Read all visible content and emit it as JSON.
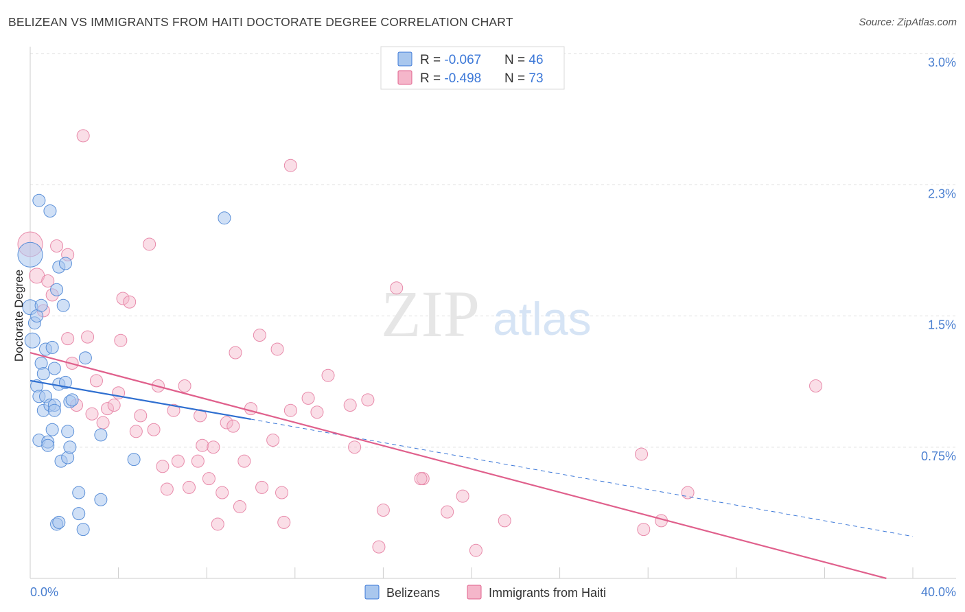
{
  "title": "BELIZEAN VS IMMIGRANTS FROM HAITI DOCTORATE DEGREE CORRELATION CHART",
  "source": "Source: ZipAtlas.com",
  "watermark": {
    "zip": "ZIP",
    "atlas": "atlas"
  },
  "colors": {
    "blue": "#3c78d8",
    "blue_fill": "#a9c7ee",
    "pink": "#e0608c",
    "pink_fill": "#f5b6ca",
    "axis_text": "#4a7fd0"
  },
  "legend": {
    "rows": [
      {
        "r_label": "R = ",
        "r_value": "-0.067",
        "n_label": "N = ",
        "n_value": "46"
      },
      {
        "r_label": "R = ",
        "r_value": "-0.498",
        "n_label": "N = ",
        "n_value": "73"
      }
    ]
  },
  "bottom_legend": {
    "blue": "Belizeans",
    "pink": "Immigrants from Haiti"
  },
  "chart_data": {
    "type": "scatter",
    "title": "BELIZEAN VS IMMIGRANTS FROM HAITI DOCTORATE DEGREE CORRELATION CHART",
    "xlabel": "",
    "ylabel": "Doctorate Degree",
    "xlim": [
      0,
      40
    ],
    "ylim": [
      0,
      3.0
    ],
    "x_tick_labels": [
      "0.0%",
      "40.0%"
    ],
    "y_ticks": [
      0.75,
      1.5,
      2.25,
      3.0
    ],
    "y_tick_labels": [
      "0.75%",
      "1.5%",
      "2.3%",
      "3.0%"
    ],
    "grid": "horizontal dashed",
    "legend_position": "top-center",
    "series": [
      {
        "name": "Belizeans",
        "r": -0.067,
        "n": 46,
        "trend": {
          "x": [
            0,
            10
          ],
          "y": [
            1.13,
            0.91
          ]
        },
        "trend_dashed": {
          "x": [
            10,
            40
          ],
          "y": [
            0.91,
            0.24
          ]
        },
        "points": [
          {
            "x": 0.0,
            "y": 1.85,
            "s": 18
          },
          {
            "x": 0.0,
            "y": 1.55,
            "s": 11
          },
          {
            "x": 0.1,
            "y": 1.36,
            "s": 11
          },
          {
            "x": 0.2,
            "y": 1.46,
            "s": 9
          },
          {
            "x": 0.3,
            "y": 1.5,
            "s": 9
          },
          {
            "x": 0.3,
            "y": 1.1,
            "s": 9
          },
          {
            "x": 0.4,
            "y": 2.16,
            "s": 9
          },
          {
            "x": 0.4,
            "y": 1.04,
            "s": 9
          },
          {
            "x": 0.4,
            "y": 0.79,
            "s": 9
          },
          {
            "x": 0.5,
            "y": 1.56,
            "s": 9
          },
          {
            "x": 0.5,
            "y": 1.23,
            "s": 9
          },
          {
            "x": 0.6,
            "y": 0.96,
            "s": 9
          },
          {
            "x": 0.6,
            "y": 1.17,
            "s": 9
          },
          {
            "x": 0.7,
            "y": 1.31,
            "s": 9
          },
          {
            "x": 0.7,
            "y": 1.04,
            "s": 9
          },
          {
            "x": 0.8,
            "y": 0.78,
            "s": 9
          },
          {
            "x": 0.8,
            "y": 0.76,
            "s": 9
          },
          {
            "x": 0.9,
            "y": 2.1,
            "s": 9
          },
          {
            "x": 0.9,
            "y": 0.99,
            "s": 9
          },
          {
            "x": 1.0,
            "y": 0.85,
            "s": 9
          },
          {
            "x": 1.0,
            "y": 1.32,
            "s": 9
          },
          {
            "x": 1.1,
            "y": 0.99,
            "s": 9
          },
          {
            "x": 1.1,
            "y": 1.2,
            "s": 9
          },
          {
            "x": 1.1,
            "y": 0.96,
            "s": 9
          },
          {
            "x": 1.2,
            "y": 0.31,
            "s": 9
          },
          {
            "x": 1.2,
            "y": 1.65,
            "s": 9
          },
          {
            "x": 1.3,
            "y": 0.32,
            "s": 9
          },
          {
            "x": 1.3,
            "y": 1.78,
            "s": 9
          },
          {
            "x": 1.3,
            "y": 1.11,
            "s": 9
          },
          {
            "x": 1.4,
            "y": 0.67,
            "s": 9
          },
          {
            "x": 1.5,
            "y": 1.56,
            "s": 9
          },
          {
            "x": 1.6,
            "y": 1.8,
            "s": 9
          },
          {
            "x": 1.6,
            "y": 1.12,
            "s": 9
          },
          {
            "x": 1.7,
            "y": 0.69,
            "s": 9
          },
          {
            "x": 1.7,
            "y": 0.84,
            "s": 9
          },
          {
            "x": 1.8,
            "y": 0.75,
            "s": 9
          },
          {
            "x": 1.8,
            "y": 1.01,
            "s": 9
          },
          {
            "x": 1.9,
            "y": 1.02,
            "s": 9
          },
          {
            "x": 2.2,
            "y": 0.49,
            "s": 9
          },
          {
            "x": 2.2,
            "y": 0.37,
            "s": 9
          },
          {
            "x": 2.4,
            "y": 0.28,
            "s": 9
          },
          {
            "x": 2.5,
            "y": 1.26,
            "s": 9
          },
          {
            "x": 3.2,
            "y": 0.45,
            "s": 9
          },
          {
            "x": 3.2,
            "y": 0.82,
            "s": 9
          },
          {
            "x": 4.7,
            "y": 0.68,
            "s": 9
          },
          {
            "x": 8.8,
            "y": 2.06,
            "s": 9
          }
        ]
      },
      {
        "name": "Immigrants from Haiti",
        "r": -0.498,
        "n": 73,
        "trend": {
          "x": [
            0,
            38.8
          ],
          "y": [
            1.29,
            0.0
          ]
        },
        "points": [
          {
            "x": 0.0,
            "y": 1.91,
            "s": 18
          },
          {
            "x": 0.3,
            "y": 1.73,
            "s": 11
          },
          {
            "x": 0.6,
            "y": 1.53,
            "s": 9
          },
          {
            "x": 0.8,
            "y": 1.7,
            "s": 9
          },
          {
            "x": 1.0,
            "y": 1.62,
            "s": 9
          },
          {
            "x": 1.2,
            "y": 1.9,
            "s": 9
          },
          {
            "x": 1.7,
            "y": 1.85,
            "s": 9
          },
          {
            "x": 1.7,
            "y": 1.37,
            "s": 9
          },
          {
            "x": 1.9,
            "y": 1.23,
            "s": 9
          },
          {
            "x": 2.1,
            "y": 0.99,
            "s": 9
          },
          {
            "x": 2.4,
            "y": 2.53,
            "s": 9
          },
          {
            "x": 2.6,
            "y": 1.38,
            "s": 9
          },
          {
            "x": 2.8,
            "y": 0.94,
            "s": 9
          },
          {
            "x": 3.0,
            "y": 1.13,
            "s": 9
          },
          {
            "x": 3.3,
            "y": 0.89,
            "s": 9
          },
          {
            "x": 3.5,
            "y": 0.97,
            "s": 9
          },
          {
            "x": 3.8,
            "y": 0.99,
            "s": 9
          },
          {
            "x": 4.0,
            "y": 1.06,
            "s": 9
          },
          {
            "x": 4.1,
            "y": 1.36,
            "s": 9
          },
          {
            "x": 4.2,
            "y": 1.6,
            "s": 9
          },
          {
            "x": 4.5,
            "y": 1.58,
            "s": 9
          },
          {
            "x": 4.8,
            "y": 0.84,
            "s": 9
          },
          {
            "x": 5.0,
            "y": 0.93,
            "s": 9
          },
          {
            "x": 5.4,
            "y": 1.91,
            "s": 9
          },
          {
            "x": 5.6,
            "y": 0.85,
            "s": 9
          },
          {
            "x": 5.8,
            "y": 1.1,
            "s": 9
          },
          {
            "x": 6.0,
            "y": 0.64,
            "s": 9
          },
          {
            "x": 6.2,
            "y": 0.51,
            "s": 9
          },
          {
            "x": 6.5,
            "y": 0.96,
            "s": 9
          },
          {
            "x": 6.7,
            "y": 0.67,
            "s": 9
          },
          {
            "x": 7.0,
            "y": 1.1,
            "s": 9
          },
          {
            "x": 7.2,
            "y": 0.52,
            "s": 9
          },
          {
            "x": 7.6,
            "y": 0.67,
            "s": 9
          },
          {
            "x": 7.7,
            "y": 0.93,
            "s": 9
          },
          {
            "x": 7.8,
            "y": 0.76,
            "s": 9
          },
          {
            "x": 8.1,
            "y": 0.57,
            "s": 9
          },
          {
            "x": 8.3,
            "y": 0.75,
            "s": 9
          },
          {
            "x": 8.5,
            "y": 0.31,
            "s": 9
          },
          {
            "x": 8.7,
            "y": 0.49,
            "s": 9
          },
          {
            "x": 8.9,
            "y": 0.89,
            "s": 9
          },
          {
            "x": 9.2,
            "y": 0.87,
            "s": 9
          },
          {
            "x": 9.3,
            "y": 1.29,
            "s": 9
          },
          {
            "x": 9.5,
            "y": 0.41,
            "s": 9
          },
          {
            "x": 9.7,
            "y": 0.67,
            "s": 9
          },
          {
            "x": 10.0,
            "y": 0.97,
            "s": 9
          },
          {
            "x": 10.4,
            "y": 1.39,
            "s": 9
          },
          {
            "x": 10.5,
            "y": 0.52,
            "s": 9
          },
          {
            "x": 11.0,
            "y": 0.79,
            "s": 9
          },
          {
            "x": 11.2,
            "y": 1.31,
            "s": 9
          },
          {
            "x": 11.4,
            "y": 0.49,
            "s": 9
          },
          {
            "x": 11.5,
            "y": 0.32,
            "s": 9
          },
          {
            "x": 11.8,
            "y": 0.96,
            "s": 9
          },
          {
            "x": 12.6,
            "y": 1.03,
            "s": 9
          },
          {
            "x": 13.0,
            "y": 0.95,
            "s": 9
          },
          {
            "x": 13.5,
            "y": 1.16,
            "s": 9
          },
          {
            "x": 14.5,
            "y": 0.99,
            "s": 9
          },
          {
            "x": 14.7,
            "y": 0.75,
            "s": 9
          },
          {
            "x": 15.3,
            "y": 1.02,
            "s": 9
          },
          {
            "x": 15.8,
            "y": 0.18,
            "s": 9
          },
          {
            "x": 16.0,
            "y": 0.39,
            "s": 9
          },
          {
            "x": 16.6,
            "y": 1.66,
            "s": 9
          },
          {
            "x": 17.8,
            "y": 0.57,
            "s": 9
          },
          {
            "x": 11.8,
            "y": 2.36,
            "s": 9
          },
          {
            "x": 18.9,
            "y": 0.38,
            "s": 9
          },
          {
            "x": 19.6,
            "y": 0.47,
            "s": 9
          },
          {
            "x": 20.2,
            "y": 0.16,
            "s": 9
          },
          {
            "x": 21.5,
            "y": 0.33,
            "s": 9
          },
          {
            "x": 27.8,
            "y": 0.28,
            "s": 9
          },
          {
            "x": 27.7,
            "y": 0.71,
            "s": 9
          },
          {
            "x": 28.6,
            "y": 0.33,
            "s": 9
          },
          {
            "x": 29.8,
            "y": 0.49,
            "s": 9
          },
          {
            "x": 35.6,
            "y": 1.1,
            "s": 9
          },
          {
            "x": 17.7,
            "y": 0.57,
            "s": 9
          }
        ]
      }
    ]
  }
}
